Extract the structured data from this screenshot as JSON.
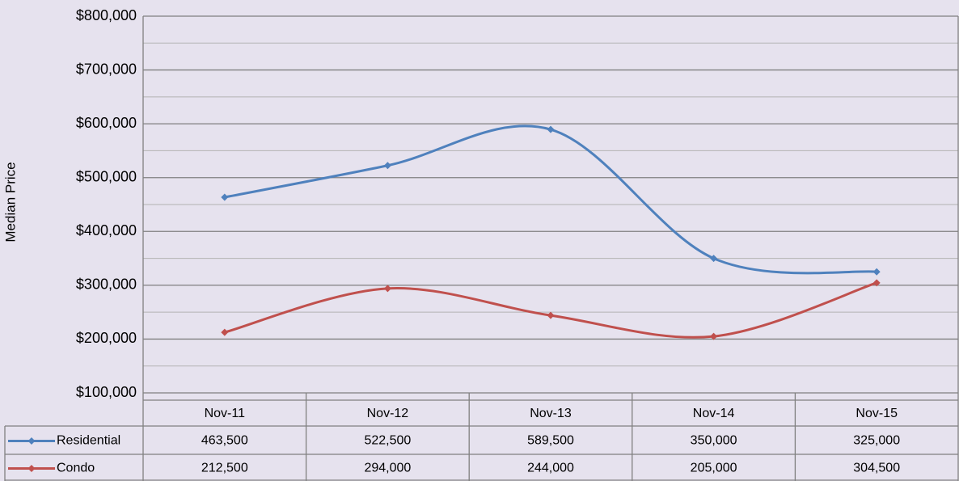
{
  "chart_data": {
    "type": "line",
    "y_label": "Median Price",
    "categories": [
      "Nov-11",
      "Nov-12",
      "Nov-13",
      "Nov-14",
      "Nov-15"
    ],
    "series": [
      {
        "name": "Residential",
        "color": "#4f81bd",
        "values": [
          463500,
          522500,
          589500,
          350000,
          325000
        ],
        "value_labels": [
          "463,500",
          "522,500",
          "589,500",
          "350,000",
          "325,000"
        ]
      },
      {
        "name": "Condo",
        "color": "#c0504d",
        "values": [
          212500,
          294000,
          244000,
          205000,
          304500
        ],
        "value_labels": [
          "212,500",
          "294,000",
          "244,000",
          "205,000",
          "304,500"
        ]
      }
    ],
    "ylim": [
      100000,
      800000
    ],
    "yticks": [
      {
        "value": 100000,
        "label": "$100,000"
      },
      {
        "value": 200000,
        "label": "$200,000"
      },
      {
        "value": 300000,
        "label": "$300,000"
      },
      {
        "value": 400000,
        "label": "$400,000"
      },
      {
        "value": 500000,
        "label": "$500,000"
      },
      {
        "value": 600000,
        "label": "$600,000"
      },
      {
        "value": 700000,
        "label": "$700,000"
      },
      {
        "value": 800000,
        "label": "$800,000"
      }
    ],
    "minor_yticks": [
      150000,
      250000,
      350000,
      450000,
      550000,
      650000,
      750000
    ],
    "grid": true,
    "smooth": true,
    "data_table": true
  }
}
